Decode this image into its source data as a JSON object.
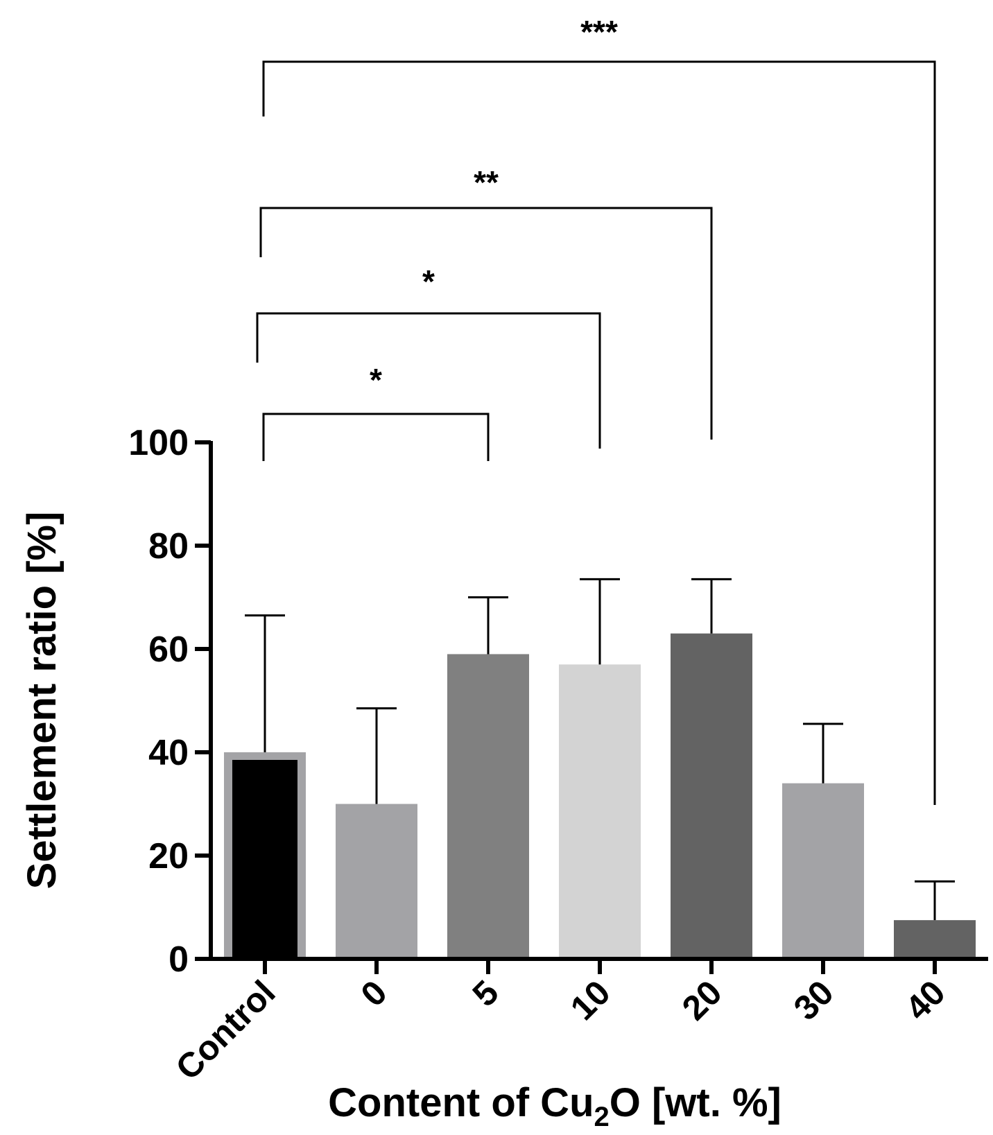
{
  "chart_data": {
    "type": "bar",
    "title": "",
    "xlabel_parts": {
      "before": "Content of Cu",
      "subscript": "2",
      "after": "O [wt. %]"
    },
    "ylabel": "Settlement ratio [%]",
    "ylim": [
      0,
      100
    ],
    "yticks": [
      "0",
      "20",
      "40",
      "60",
      "80",
      "100"
    ],
    "categories": [
      "Control",
      "0",
      "5",
      "10",
      "20",
      "30",
      "40"
    ],
    "values": [
      40,
      30,
      59,
      57,
      63,
      34,
      7.5
    ],
    "errors": [
      26.5,
      18.5,
      11,
      16.5,
      10.5,
      11.5,
      7.5
    ],
    "colors": [
      "#000000",
      "#a3a3a6",
      "#808080",
      "#d3d3d3",
      "#636363",
      "#a3a3a6",
      "#636363"
    ],
    "control_outline": "#a3a3a6",
    "significance": [
      {
        "from": "Control",
        "to": "5",
        "label": "*"
      },
      {
        "from": "Control",
        "to": "10",
        "label": "*"
      },
      {
        "from": "Control",
        "to": "20",
        "label": "**"
      },
      {
        "from": "Control",
        "to": "40",
        "label": "***"
      }
    ]
  }
}
